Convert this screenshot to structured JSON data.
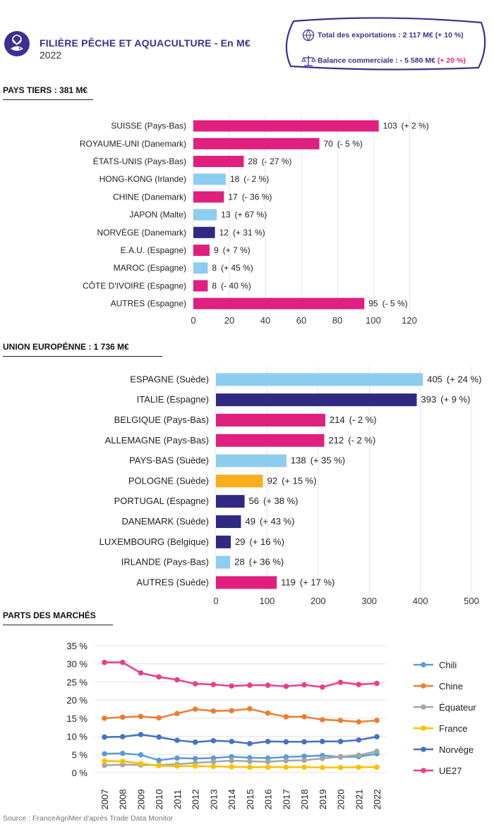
{
  "header": {
    "title": "FILIÈRE PÊCHE ET AQUACULTURE - En M€",
    "year": "2022",
    "export_label": "Total des exportations : 2 117 M€ ",
    "export_change": "(+ 10 %)",
    "balance_label": "Balance commerciale : - 5 580 M€ ",
    "balance_change": "(+ 20 %)"
  },
  "sections": {
    "pays_tiers": "PAYS TIERS : 381 M€",
    "ue": "UNION EUROPÉNNE : 1 736 M€",
    "parts": "PARTS DES MARCHÉS"
  },
  "source": "Source : FranceAgriMer d'après Trade Data Monitor",
  "colors": {
    "magenta": "#e01f7e",
    "lightblue": "#8ccdf0",
    "navy": "#2f2983",
    "orange": "#f9ae1b"
  },
  "chart_data": [
    {
      "type": "bar",
      "orientation": "horizontal",
      "categories": [
        "SUISSE (Pays-Bas)",
        "ROYAUME-UNI (Danemark)",
        "ÉTATS-UNIS (Pays-Bas)",
        "HONG-KONG (Irlande)",
        "CHINE (Danemark)",
        "JAPON (Malte)",
        "NORVÈGE (Danemark)",
        "E.A.U. (Espagne)",
        "MAROC (Espagne)",
        "CÔTE D'IVOIRE (Espagne)",
        "AUTRES (Espagne)"
      ],
      "values": [
        103,
        70,
        28,
        18,
        17,
        13,
        12,
        9,
        8,
        8,
        95
      ],
      "labels": [
        "103",
        "70",
        "28",
        "18",
        "17",
        "13",
        "12",
        "9",
        "8",
        "8",
        "95"
      ],
      "changes": [
        "(+ 2 %)",
        "(- 5 %)",
        "(- 27 %)",
        "(- 2 %)",
        "(- 36 %)",
        "(+ 67 %)",
        "(+ 31 %)",
        "(+ 7 %)",
        "(+ 45 %)",
        "(- 40 %)",
        "(- 5 %)"
      ],
      "colors": [
        "#e01f7e",
        "#e01f7e",
        "#e01f7e",
        "#8ccdf0",
        "#e01f7e",
        "#8ccdf0",
        "#2f2983",
        "#e01f7e",
        "#8ccdf0",
        "#e01f7e",
        "#e01f7e"
      ],
      "xticks": [
        "0",
        "20",
        "40",
        "60",
        "80",
        "100",
        "120"
      ],
      "xlim": [
        0,
        120
      ],
      "grid": "vertical"
    },
    {
      "type": "bar",
      "orientation": "horizontal",
      "categories": [
        "ESPAGNE (Suède)",
        "ITALIE (Espagne)",
        "BELGIQUE (Pays-Bas)",
        "ALLEMAGNE (Pays-Bas)",
        "PAYS-BAS (Suède)",
        "POLOGNE (Suède)",
        "PORTUGAL (Espagne)",
        "DANEMARK (Suède)",
        "LUXEMBOURG (Belgique)",
        "IRLANDE (Pays-Bas)",
        "AUTRES (Suède)"
      ],
      "values": [
        405,
        393,
        214,
        212,
        138,
        92,
        56,
        49,
        29,
        28,
        119
      ],
      "labels": [
        "405",
        "393",
        "214",
        "212",
        "138",
        "92",
        "56",
        "49",
        "29",
        "28",
        "119"
      ],
      "changes": [
        "(+ 24 %)",
        "(+ 9 %)",
        "(- 2 %)",
        "(- 2 %)",
        "(+ 35 %)",
        "(+ 15 %)",
        "(+ 38 %)",
        "(+ 43 %)",
        "(+ 16 %)",
        "(+ 36 %)",
        "(+ 17 %)"
      ],
      "colors": [
        "#8ccdf0",
        "#2f2983",
        "#e01f7e",
        "#e01f7e",
        "#8ccdf0",
        "#f9ae1b",
        "#2f2983",
        "#2f2983",
        "#2f2983",
        "#8ccdf0",
        "#e01f7e"
      ],
      "xticks": [
        "0",
        "100",
        "200",
        "300",
        "400",
        "500"
      ],
      "xlim": [
        0,
        500
      ],
      "grid": "vertical"
    },
    {
      "type": "line",
      "x": [
        "2007",
        "2008",
        "2009",
        "2010",
        "2011",
        "2012",
        "2013",
        "2014",
        "2015",
        "2016",
        "2017",
        "2018",
        "2019",
        "2020",
        "2021",
        "2022"
      ],
      "yticks": [
        "0 %",
        "5 %",
        "10 %",
        "15 %",
        "20 %",
        "25 %",
        "30 %",
        "35 %"
      ],
      "ylim": [
        0,
        35
      ],
      "legend": "right",
      "grid": "horizontal",
      "series": [
        {
          "name": "Chili",
          "color": "#5b9bd5",
          "values": [
            5.2,
            5.3,
            4.9,
            3.4,
            4.0,
            3.9,
            4.0,
            4.4,
            4.1,
            4.0,
            4.3,
            4.5,
            4.7,
            4.3,
            4.4,
            5.2
          ]
        },
        {
          "name": "Chine",
          "color": "#ed7d31",
          "values": [
            15.0,
            15.3,
            15.5,
            15.1,
            16.3,
            17.5,
            17.0,
            17.1,
            17.6,
            16.4,
            15.4,
            15.4,
            14.6,
            14.4,
            14.0,
            14.4
          ]
        },
        {
          "name": "Équateur",
          "color": "#a5a5a5",
          "values": [
            2.0,
            2.2,
            2.1,
            2.1,
            2.3,
            2.7,
            3.0,
            3.3,
            3.1,
            3.0,
            3.3,
            3.4,
            3.9,
            4.4,
            4.8,
            5.9
          ]
        },
        {
          "name": "France",
          "color": "#ffc000",
          "values": [
            3.2,
            3.1,
            2.5,
            1.9,
            1.8,
            1.8,
            1.7,
            1.6,
            1.5,
            1.5,
            1.5,
            1.5,
            1.4,
            1.4,
            1.5,
            1.5
          ]
        },
        {
          "name": "Norvège",
          "color": "#4472c4",
          "values": [
            9.8,
            9.9,
            10.5,
            9.8,
            8.9,
            8.4,
            8.8,
            8.6,
            8.0,
            8.6,
            8.5,
            8.5,
            8.6,
            8.6,
            9.0,
            9.9
          ]
        },
        {
          "name": "UE27",
          "color": "#e83e8c",
          "values": [
            30.4,
            30.4,
            27.5,
            26.4,
            25.6,
            24.5,
            24.3,
            23.9,
            24.1,
            24.1,
            23.8,
            24.2,
            23.6,
            24.9,
            24.3,
            24.6
          ]
        }
      ]
    }
  ]
}
